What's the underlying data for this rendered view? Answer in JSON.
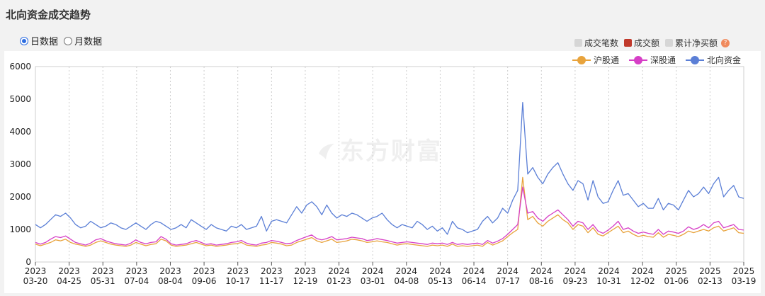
{
  "panel": {
    "title": "北向资金成交趋势"
  },
  "period": {
    "options": [
      "日数据",
      "月数据"
    ],
    "selected": "日数据"
  },
  "metric_legend": [
    {
      "label": "成交笔数",
      "color": "#d6d6d6",
      "active": false
    },
    {
      "label": "成交额",
      "color": "#c0392b",
      "active": true
    },
    {
      "label": "累计净买额",
      "color": "#d6d6d6",
      "active": false
    }
  ],
  "help_icon": "question-icon",
  "watermark": "东方财富",
  "chart_data": {
    "type": "line",
    "title": "",
    "xlabel": "",
    "ylabel": "",
    "ylim": [
      0,
      6000
    ],
    "yticks": [
      0,
      1000,
      2000,
      3000,
      4000,
      5000,
      6000
    ],
    "grid": "vertical dashed",
    "legend_position": "top-right",
    "x_tick_labels": [
      [
        "2023",
        "03-20"
      ],
      [
        "2023",
        "04-25"
      ],
      [
        "2023",
        "05-31"
      ],
      [
        "2023",
        "07-04"
      ],
      [
        "2023",
        "08-04"
      ],
      [
        "2023",
        "09-06"
      ],
      [
        "2023",
        "10-17"
      ],
      [
        "2023",
        "11-17"
      ],
      [
        "2023",
        "12-19"
      ],
      [
        "2024",
        "01-23"
      ],
      [
        "2024",
        "03-01"
      ],
      [
        "2024",
        "04-08"
      ],
      [
        "2024",
        "05-13"
      ],
      [
        "2024",
        "06-14"
      ],
      [
        "2024",
        "07-17"
      ],
      [
        "2024",
        "08-16"
      ],
      [
        "2024",
        "09-23"
      ],
      [
        "2024",
        "10-31"
      ],
      [
        "2024",
        "12-02"
      ],
      [
        "2025",
        "01-06"
      ],
      [
        "2025",
        "02-13"
      ],
      [
        "2025",
        "03-19"
      ]
    ],
    "series": [
      {
        "name": "北向资金",
        "color": "#5b7fd6",
        "values": [
          1150,
          1050,
          1150,
          1300,
          1450,
          1400,
          1500,
          1350,
          1150,
          1050,
          1100,
          1250,
          1150,
          1050,
          1100,
          1200,
          1150,
          1050,
          1000,
          1100,
          1200,
          1100,
          1000,
          1150,
          1250,
          1200,
          1100,
          1000,
          1050,
          1150,
          1050,
          1300,
          1200,
          1100,
          1000,
          1150,
          1050,
          1000,
          950,
          1100,
          1050,
          1150,
          1000,
          1050,
          1100,
          1400,
          950,
          1250,
          1300,
          1250,
          1200,
          1450,
          1700,
          1500,
          1750,
          1850,
          1700,
          1450,
          1750,
          1500,
          1350,
          1450,
          1400,
          1500,
          1450,
          1350,
          1250,
          1350,
          1400,
          1500,
          1300,
          1150,
          1050,
          1150,
          1100,
          1050,
          1250,
          1150,
          1000,
          1100,
          950,
          1050,
          850,
          1250,
          1050,
          1000,
          900,
          950,
          1000,
          1250,
          1400,
          1200,
          1350,
          1650,
          1500,
          1900,
          2200,
          4900,
          2700,
          2900,
          2600,
          2400,
          2700,
          2900,
          3050,
          2700,
          2400,
          2200,
          2500,
          2400,
          1900,
          2500,
          2000,
          1800,
          1850,
          2200,
          2500,
          2050,
          2100,
          1900,
          1700,
          1800,
          1650,
          1650,
          1950,
          1600,
          1800,
          1750,
          1600,
          1900,
          2200,
          2000,
          2100,
          2300,
          2100,
          2400,
          2600,
          2000,
          2200,
          2350,
          2000,
          1950
        ]
      },
      {
        "name": "沪股通",
        "color": "#e8a33c",
        "values": [
          550,
          500,
          550,
          600,
          680,
          650,
          700,
          600,
          550,
          520,
          480,
          520,
          600,
          650,
          600,
          550,
          520,
          500,
          480,
          520,
          600,
          550,
          500,
          540,
          560,
          700,
          650,
          520,
          480,
          500,
          520,
          560,
          600,
          550,
          500,
          520,
          480,
          500,
          520,
          550,
          560,
          600,
          520,
          500,
          480,
          520,
          540,
          600,
          580,
          550,
          500,
          520,
          600,
          650,
          700,
          750,
          650,
          600,
          650,
          700,
          600,
          620,
          650,
          700,
          680,
          650,
          600,
          620,
          650,
          620,
          600,
          560,
          520,
          550,
          560,
          540,
          520,
          500,
          480,
          520,
          500,
          520,
          480,
          550,
          480,
          500,
          480,
          500,
          520,
          480,
          600,
          520,
          580,
          650,
          780,
          900,
          1000,
          2600,
          1300,
          1400,
          1200,
          1100,
          1250,
          1350,
          1450,
          1300,
          1200,
          1000,
          1150,
          1100,
          900,
          1050,
          850,
          800,
          900,
          1000,
          1100,
          900,
          950,
          850,
          780,
          820,
          780,
          760,
          900,
          760,
          850,
          820,
          780,
          850,
          950,
          900,
          950,
          1000,
          950,
          1050,
          1100,
          950,
          1000,
          1050,
          900,
          880
        ]
      },
      {
        "name": "深股通",
        "color": "#d63fc6",
        "values": [
          600,
          550,
          600,
          700,
          780,
          750,
          800,
          700,
          600,
          560,
          520,
          580,
          680,
          720,
          650,
          600,
          560,
          540,
          520,
          580,
          680,
          600,
          560,
          600,
          620,
          780,
          700,
          560,
          520,
          540,
          560,
          620,
          660,
          600,
          540,
          560,
          520,
          540,
          560,
          600,
          620,
          660,
          580,
          540,
          520,
          580,
          600,
          660,
          640,
          600,
          560,
          580,
          660,
          720,
          780,
          830,
          720,
          680,
          720,
          780,
          680,
          700,
          720,
          760,
          740,
          720,
          660,
          680,
          720,
          690,
          660,
          620,
          580,
          600,
          620,
          600,
          580,
          560,
          540,
          580,
          560,
          580,
          540,
          600,
          540,
          560,
          540,
          560,
          580,
          540,
          660,
          580,
          640,
          720,
          850,
          1000,
          1150,
          2300,
          1500,
          1550,
          1350,
          1250,
          1400,
          1500,
          1600,
          1450,
          1300,
          1100,
          1250,
          1200,
          1000,
          1150,
          950,
          880,
          980,
          1100,
          1250,
          1000,
          1050,
          950,
          880,
          920,
          880,
          850,
          1000,
          850,
          950,
          920,
          880,
          950,
          1080,
          1000,
          1050,
          1150,
          1050,
          1200,
          1250,
          1050,
          1100,
          1150,
          1000,
          980
        ]
      }
    ]
  }
}
